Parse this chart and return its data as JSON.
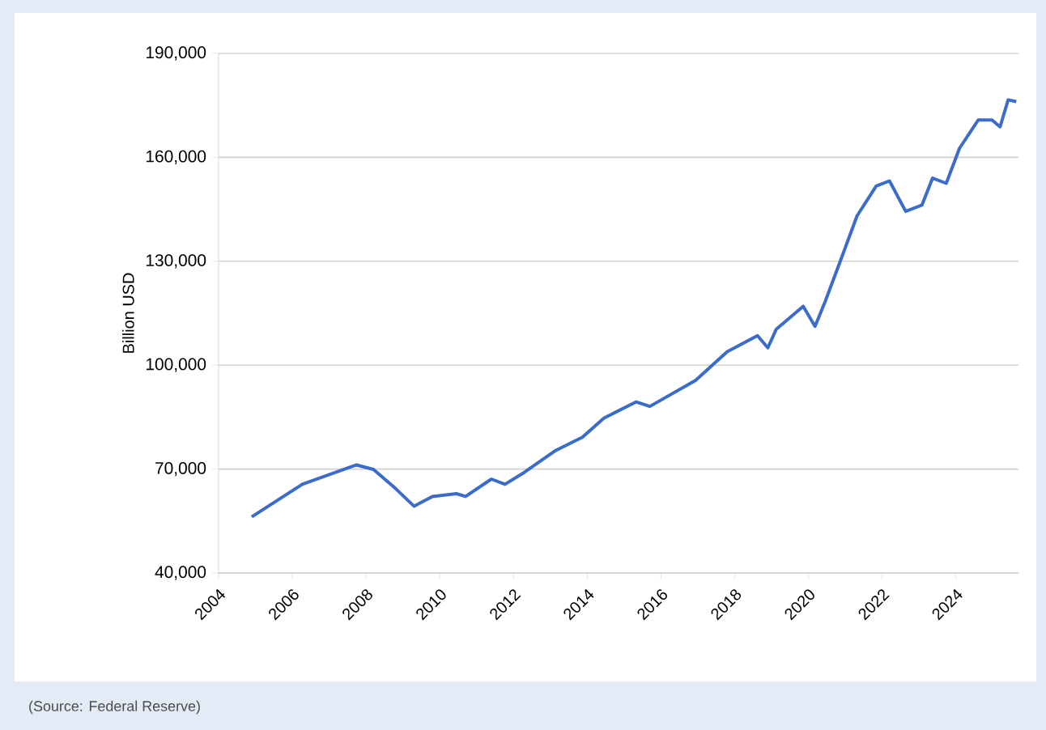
{
  "chart_data": {
    "type": "line",
    "ylabel": "Billion USD",
    "color": "#3b6cc9",
    "x": [
      2004.9,
      2006.27,
      2007.74,
      2008.2,
      2008.8,
      2009.3,
      2009.8,
      2010.45,
      2010.7,
      2011.4,
      2011.77,
      2012.3,
      2013.15,
      2013.87,
      2014.45,
      2015.33,
      2015.7,
      2016.94,
      2017.8,
      2018.62,
      2018.9,
      2019.13,
      2019.86,
      2020.18,
      2020.45,
      2020.89,
      2021.32,
      2021.84,
      2022.2,
      2022.64,
      2023.08,
      2023.37,
      2023.74,
      2024.1,
      2024.61,
      2024.98,
      2025.2,
      2025.42,
      2025.64
    ],
    "values": [
      56200,
      65600,
      71200,
      69900,
      64400,
      59300,
      62100,
      62900,
      62100,
      67100,
      65600,
      69100,
      75400,
      79200,
      84700,
      89400,
      88100,
      95600,
      103900,
      108500,
      105000,
      110400,
      117000,
      111200,
      118200,
      130700,
      143100,
      151700,
      153200,
      144400,
      146200,
      154000,
      152500,
      162600,
      170800,
      170800,
      168800,
      176600,
      176100
    ],
    "xlim": [
      2004,
      2025.7
    ],
    "xticks": [
      2004,
      2006,
      2008,
      2010,
      2012,
      2014,
      2016,
      2018,
      2020,
      2022,
      2024
    ],
    "ylim": [
      40000,
      190000
    ],
    "yticks": [
      {
        "value": 40000,
        "label": "40,000"
      },
      {
        "value": 70000,
        "label": "70,000"
      },
      {
        "value": 100000,
        "label": "100,000"
      },
      {
        "value": 130000,
        "label": "130,000"
      },
      {
        "value": 160000,
        "label": "160,000"
      },
      {
        "value": 190000,
        "label": "190,000"
      }
    ],
    "grid": "y",
    "line_style": "solid",
    "marker": "none",
    "annotations": [
      "(Source: Federal Reserve)"
    ]
  }
}
